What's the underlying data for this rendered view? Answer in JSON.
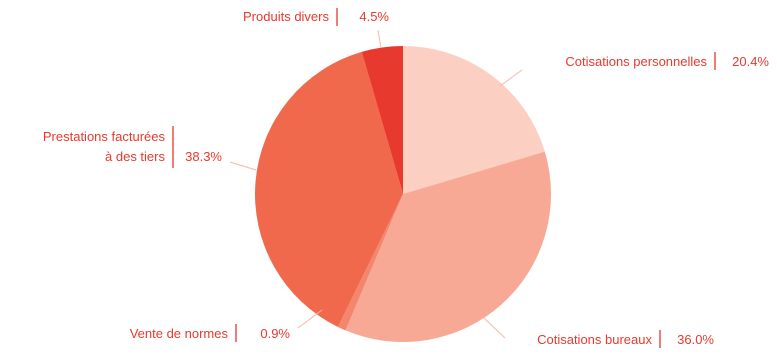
{
  "chart_data": {
    "type": "pie",
    "title": "",
    "label_color": "#e8392e",
    "start_angle_deg": 0,
    "direction": "clockwise",
    "slices": [
      {
        "label_lines": [
          "Cotisations personnelles"
        ],
        "value": 20.4,
        "value_text": "20.4%",
        "color": "#fbcfc2"
      },
      {
        "label_lines": [
          "Cotisations bureaux"
        ],
        "value": 36.0,
        "value_text": "36.0%",
        "color": "#f7a995"
      },
      {
        "label_lines": [
          "Vente de normes"
        ],
        "value": 0.9,
        "value_text": "0.9%",
        "color": "#f4866e"
      },
      {
        "label_lines": [
          "Prestations facturées",
          "à des tiers"
        ],
        "value": 38.3,
        "value_text": "38.3%",
        "color": "#f0694d"
      },
      {
        "label_lines": [
          "Produits divers"
        ],
        "value": 4.5,
        "value_text": "4.5%",
        "color": "#e8392e"
      }
    ]
  }
}
